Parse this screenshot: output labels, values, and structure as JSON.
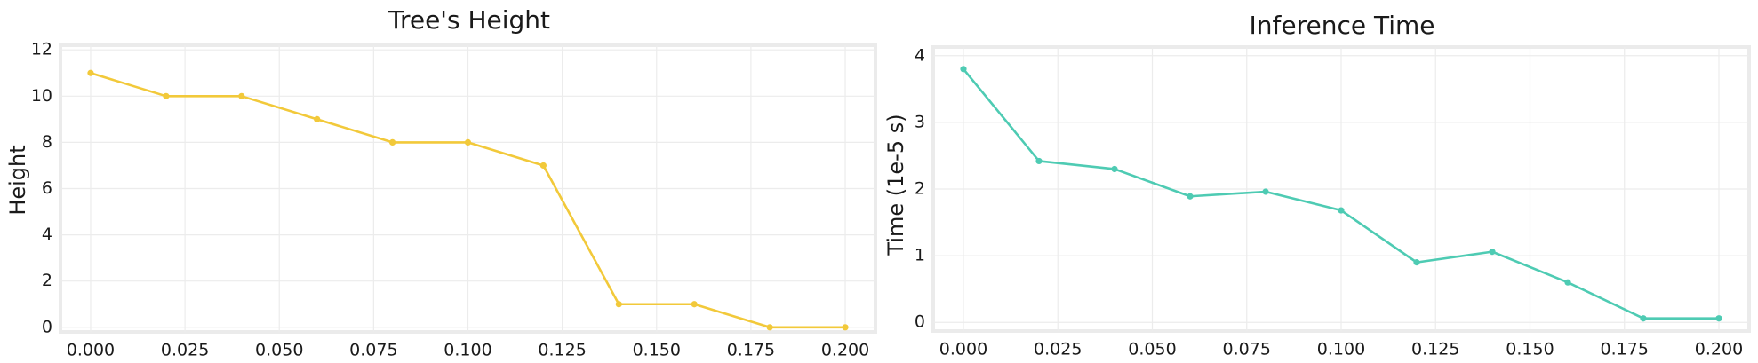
{
  "chart_data": [
    {
      "type": "line",
      "title": "Tree's Height",
      "xlabel": "",
      "ylabel": "Height",
      "x": [
        0.0,
        0.02,
        0.04,
        0.06,
        0.08,
        0.1,
        0.12,
        0.14,
        0.16,
        0.18,
        0.2
      ],
      "series": [
        {
          "values": [
            11,
            10,
            10,
            9,
            8,
            8,
            7,
            1,
            1,
            0,
            0
          ],
          "color": "#f2c93a"
        }
      ],
      "xlim": [
        -0.008,
        0.208
      ],
      "ylim": [
        -0.2,
        12.2
      ],
      "xticks": [
        0.0,
        0.025,
        0.05,
        0.075,
        0.1,
        0.125,
        0.15,
        0.175,
        0.2
      ],
      "xtick_labels": [
        "0.000",
        "0.025",
        "0.050",
        "0.075",
        "0.100",
        "0.125",
        "0.150",
        "0.175",
        "0.200"
      ],
      "yticks": [
        0,
        2,
        4,
        6,
        8,
        10,
        12
      ],
      "ytick_labels": [
        "0",
        "2",
        "4",
        "6",
        "8",
        "10",
        "12"
      ],
      "grid": true
    },
    {
      "type": "line",
      "title": "Inference Time",
      "xlabel": "",
      "ylabel": "Time (1e-5 s)",
      "x": [
        0.0,
        0.02,
        0.04,
        0.06,
        0.08,
        0.1,
        0.12,
        0.14,
        0.16,
        0.18,
        0.2
      ],
      "series": [
        {
          "values": [
            3.8,
            2.42,
            2.3,
            1.89,
            1.96,
            1.68,
            0.9,
            1.06,
            0.6,
            0.06,
            0.06
          ],
          "color": "#4ecbb3"
        }
      ],
      "xlim": [
        -0.008,
        0.208
      ],
      "ylim": [
        -0.13,
        4.13
      ],
      "xticks": [
        0.0,
        0.025,
        0.05,
        0.075,
        0.1,
        0.125,
        0.15,
        0.175,
        0.2
      ],
      "xtick_labels": [
        "0.000",
        "0.025",
        "0.050",
        "0.075",
        "0.100",
        "0.125",
        "0.150",
        "0.175",
        "0.200"
      ],
      "yticks": [
        0,
        1,
        2,
        3,
        4
      ],
      "ytick_labels": [
        "0",
        "1",
        "2",
        "3",
        "4"
      ],
      "grid": true
    }
  ]
}
